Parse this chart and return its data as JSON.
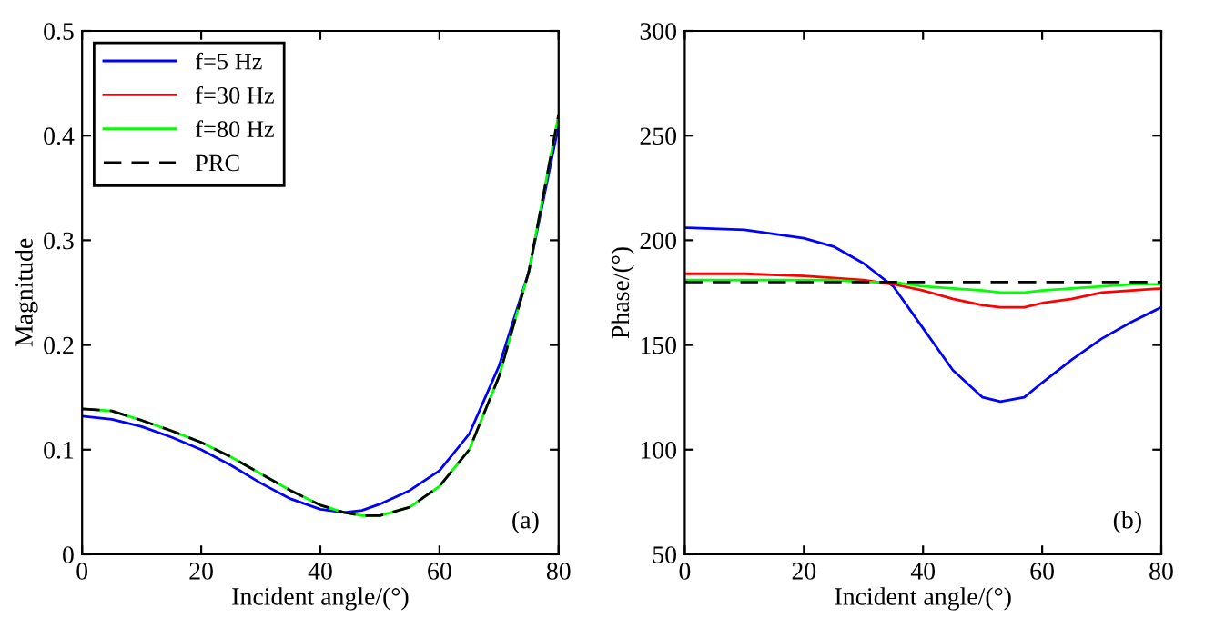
{
  "chart_data": [
    {
      "type": "line",
      "xlabel": "Incident angle/(°)",
      "ylabel": "Magnitude",
      "xlim": [
        0,
        80
      ],
      "ylim": [
        0,
        0.5
      ],
      "xticks": [
        0,
        20,
        40,
        60,
        80
      ],
      "yticks": [
        0,
        0.1,
        0.2,
        0.3,
        0.4,
        0.5
      ],
      "legend": "top left",
      "grid": false,
      "annotations": [
        "(a)"
      ],
      "x": [
        0,
        5,
        10,
        15,
        20,
        25,
        30,
        35,
        40,
        44,
        47,
        50,
        55,
        60,
        65,
        70,
        75,
        80
      ],
      "series": [
        {
          "name": "f=5 Hz",
          "color": "#0000ff",
          "line_style": "solid",
          "values": [
            0.132,
            0.129,
            0.122,
            0.112,
            0.1,
            0.085,
            0.068,
            0.053,
            0.043,
            0.04,
            0.042,
            0.048,
            0.061,
            0.08,
            0.115,
            0.18,
            0.27,
            0.41
          ]
        },
        {
          "name": "f=30 Hz",
          "color": "#ff0000",
          "line_style": "solid",
          "values": [
            null,
            null,
            null,
            null,
            null,
            null,
            null,
            null,
            null,
            null,
            null,
            null,
            null,
            null,
            null,
            null,
            null,
            null
          ]
        },
        {
          "name": "f=80 Hz",
          "color": "#00ff00",
          "line_style": "solid",
          "values": [
            0.139,
            0.137,
            0.128,
            0.118,
            0.107,
            0.093,
            0.077,
            0.061,
            0.047,
            0.04,
            0.037,
            0.037,
            0.045,
            0.065,
            0.1,
            0.17,
            0.27,
            0.42
          ]
        },
        {
          "name": "PRC",
          "color": "#000000",
          "line_style": "dashed",
          "values": [
            0.139,
            0.137,
            0.128,
            0.118,
            0.107,
            0.093,
            0.077,
            0.061,
            0.047,
            0.04,
            0.037,
            0.037,
            0.045,
            0.065,
            0.1,
            0.17,
            0.27,
            0.42
          ]
        }
      ]
    },
    {
      "type": "line",
      "xlabel": "Incident angle/(°)",
      "ylabel": "Phase/(°)",
      "xlim": [
        0,
        80
      ],
      "ylim": [
        50,
        300
      ],
      "xticks": [
        0,
        20,
        40,
        60,
        80
      ],
      "yticks": [
        50,
        100,
        150,
        200,
        250,
        300
      ],
      "grid": false,
      "annotations": [
        "(b)"
      ],
      "x": [
        0,
        10,
        20,
        25,
        30,
        35,
        40,
        45,
        50,
        53,
        57,
        60,
        65,
        70,
        75,
        80
      ],
      "series": [
        {
          "color": "#0000ff",
          "line_style": "solid",
          "values": [
            206,
            205,
            201,
            197,
            189,
            178,
            158,
            138,
            125,
            123,
            125,
            132,
            143,
            153,
            161,
            168
          ]
        },
        {
          "color": "#ff0000",
          "line_style": "solid",
          "values": [
            184,
            184,
            183,
            182,
            181,
            179,
            176,
            172,
            169,
            168,
            168,
            170,
            172,
            175,
            176,
            177
          ]
        },
        {
          "color": "#00ff00",
          "line_style": "solid",
          "values": [
            181,
            181,
            181,
            181,
            180,
            180,
            178,
            177,
            176,
            175,
            175,
            176,
            177,
            178,
            179,
            179
          ]
        },
        {
          "color": "#000000",
          "line_style": "dashed",
          "values": [
            180,
            180,
            180,
            180,
            180,
            180,
            180,
            180,
            180,
            180,
            180,
            180,
            180,
            180,
            180,
            180
          ]
        }
      ]
    }
  ]
}
